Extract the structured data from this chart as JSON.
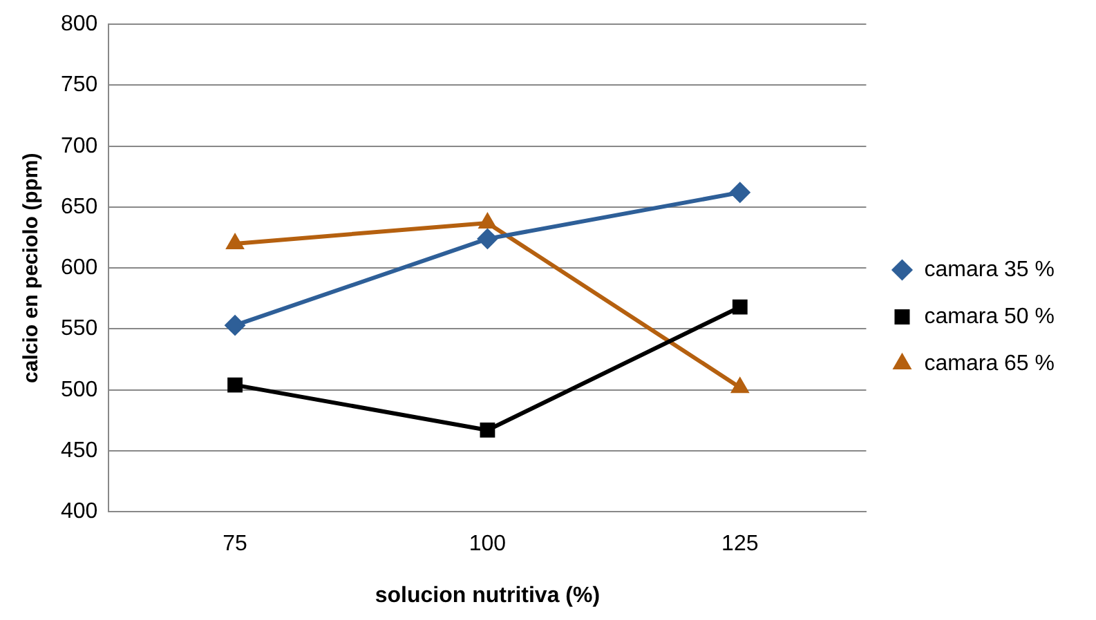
{
  "chart_data": {
    "type": "line",
    "xlabel": "solucion nutritiva (%)",
    "ylabel": "calcio en peciolo (ppm)",
    "categories": [
      "75",
      "100",
      "125"
    ],
    "series": [
      {
        "name": "camara 35 %",
        "color": "#2e5f98",
        "values": [
          553,
          624,
          662
        ],
        "marker": "diamond"
      },
      {
        "name": "camara 50 %",
        "color": "#000000",
        "values": [
          504,
          467,
          568
        ],
        "marker": "square"
      },
      {
        "name": "camara 65 %",
        "color": "#b5600f",
        "values": [
          620,
          637,
          502
        ],
        "marker": "triangle"
      }
    ],
    "ylim": [
      400,
      800
    ],
    "yticks": [
      400,
      450,
      500,
      550,
      600,
      650,
      700,
      750,
      800
    ],
    "grid": "y",
    "legend": "right"
  }
}
